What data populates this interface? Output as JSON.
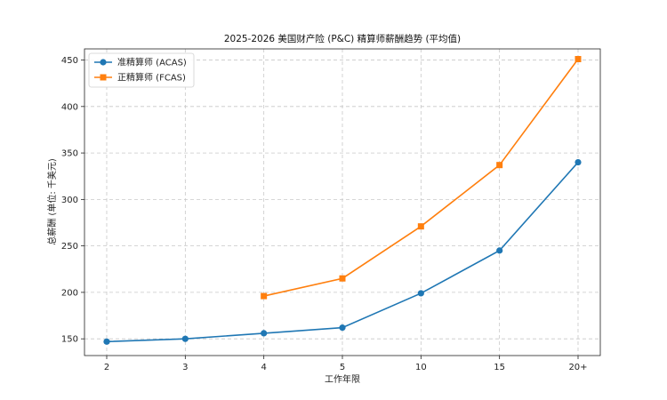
{
  "chart_data": {
    "type": "line",
    "title": "2025-2026 美国财产险 (P&C) 精算师薪酬趋势 (平均值)",
    "xlabel": "工作年限",
    "ylabel": "总薪酬 (单位: 千美元)",
    "categories": [
      "2",
      "3",
      "4",
      "5",
      "10",
      "15",
      "20+"
    ],
    "ylim": [
      132,
      462
    ],
    "yticks": [
      150,
      200,
      250,
      300,
      350,
      400,
      450
    ],
    "grid": true,
    "legend": "top-left",
    "series": [
      {
        "name": "准精算师 (ACAS)",
        "marker": "circle",
        "color": "#1f77b4",
        "values": [
          147,
          150,
          156,
          162,
          199,
          245,
          340
        ]
      },
      {
        "name": "正精算师 (FCAS)",
        "marker": "square",
        "color": "#ff7f0e",
        "values": [
          null,
          null,
          196,
          215,
          271,
          337,
          451
        ]
      }
    ]
  }
}
